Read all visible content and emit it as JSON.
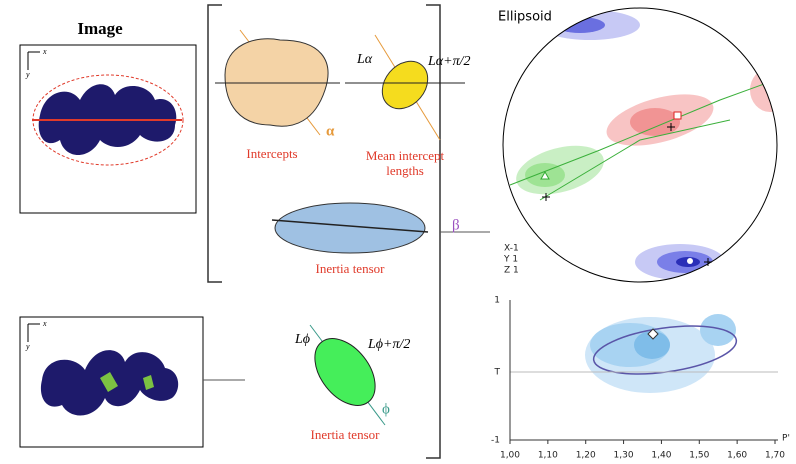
{
  "image_title": "Image",
  "axes_x": "x",
  "axes_y": "y",
  "intercepts": {
    "caption": "Intercepts",
    "angle": "α"
  },
  "mean_intercept": {
    "caption_line1": "Mean intercept",
    "caption_line2": "lengths",
    "l_alpha": "Lα",
    "l_alpha_perp": "Lα+π/2"
  },
  "inertia_top": {
    "caption": "Inertia tensor",
    "angle": "β"
  },
  "inertia_bottom": {
    "caption": "Inertia tensor",
    "l_phi": "Lϕ",
    "l_phi_perp": "Lϕ+π/2",
    "angle": "ϕ"
  },
  "stereonet": {
    "title": "Ellipsoid",
    "legend": [
      "X-1",
      "Y 1",
      "Z 1"
    ]
  },
  "plot": {
    "y_ticks": [
      "1",
      "T",
      "-1"
    ],
    "x_ticks": [
      "1,00",
      "1,10",
      "1,20",
      "1,30",
      "1,40",
      "1,50",
      "1,60",
      "1,70"
    ],
    "x_label": "P'"
  }
}
